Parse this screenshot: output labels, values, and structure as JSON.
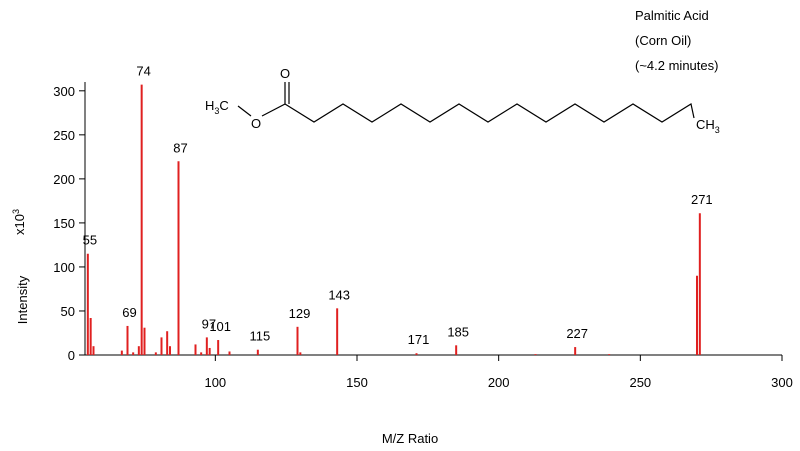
{
  "chart_data": {
    "type": "stem",
    "annotation": [
      "Palmitic Acid",
      "(Corn Oil)",
      "(~4.2 minutes)"
    ],
    "xlabel": "M/Z Ratio",
    "ylabel": "Intensity",
    "y_unit": "x10",
    "y_unit_exponent": "3",
    "molecule": {
      "left_group": [
        "H",
        "3",
        "C"
      ],
      "ester_o": "O",
      "carbonyl_o": "O",
      "right_group": [
        "CH",
        "3"
      ]
    },
    "x": [
      55,
      56,
      57,
      67,
      69,
      71,
      73,
      74,
      75,
      79,
      81,
      83,
      84,
      87,
      93,
      95,
      97,
      98,
      101,
      105,
      115,
      129,
      130,
      143,
      171,
      185,
      213,
      227,
      239,
      270,
      271
    ],
    "values": [
      115,
      42,
      10,
      5,
      33,
      3,
      10,
      307,
      31,
      3,
      20,
      27,
      10,
      220,
      12,
      3,
      20,
      8,
      17,
      4,
      6,
      32,
      3,
      53,
      2,
      11,
      1,
      9,
      1,
      90,
      161
    ],
    "peak_labels": [
      55,
      null,
      null,
      null,
      69,
      null,
      null,
      74,
      null,
      null,
      null,
      null,
      null,
      87,
      null,
      null,
      97,
      null,
      101,
      null,
      115,
      129,
      null,
      143,
      171,
      185,
      null,
      227,
      null,
      null,
      271
    ],
    "color": "#e02020",
    "xlim": [
      54,
      300
    ],
    "xticks": [
      100,
      150,
      200,
      250,
      300
    ],
    "ylim": [
      0,
      310
    ],
    "yticks": [
      0,
      50,
      100,
      150,
      200,
      250,
      300
    ]
  }
}
